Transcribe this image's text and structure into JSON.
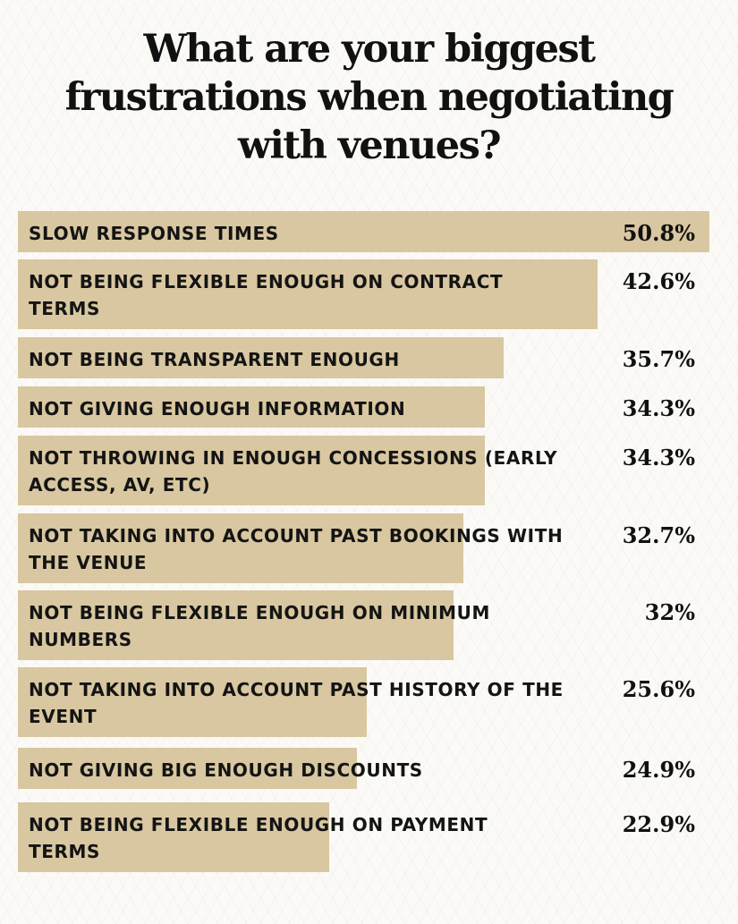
{
  "title": "What are your biggest frustrations when negotiating with venues?",
  "colors": {
    "bar": "#d8c7a0",
    "text": "#111111",
    "background": "#fbfaf6"
  },
  "chart_data": {
    "type": "bar",
    "orientation": "horizontal",
    "title": "What are your biggest frustrations when negotiating with venues?",
    "categories": [
      "Slow response times",
      "Not being flexible enough on contract terms",
      "Not being transparent enough",
      "Not giving enough information",
      "Not throwing in enough concessions (early access, AV, etc)",
      "Not taking into account past bookings with the venue",
      "Not being flexible enough on minimum numbers",
      "Not taking into account past history of the event",
      "Not giving big enough discounts",
      "Not being flexible enough on payment terms"
    ],
    "values": [
      50.8,
      42.6,
      35.7,
      34.3,
      34.3,
      32.7,
      32,
      25.6,
      24.9,
      22.9
    ],
    "value_labels": [
      "50.8%",
      "42.6%",
      "35.7%",
      "34.3%",
      "34.3%",
      "32.7%",
      "32%",
      "25.6%",
      "24.9%",
      "22.9%"
    ],
    "unit": "%",
    "xlim": [
      0,
      50.8
    ]
  }
}
